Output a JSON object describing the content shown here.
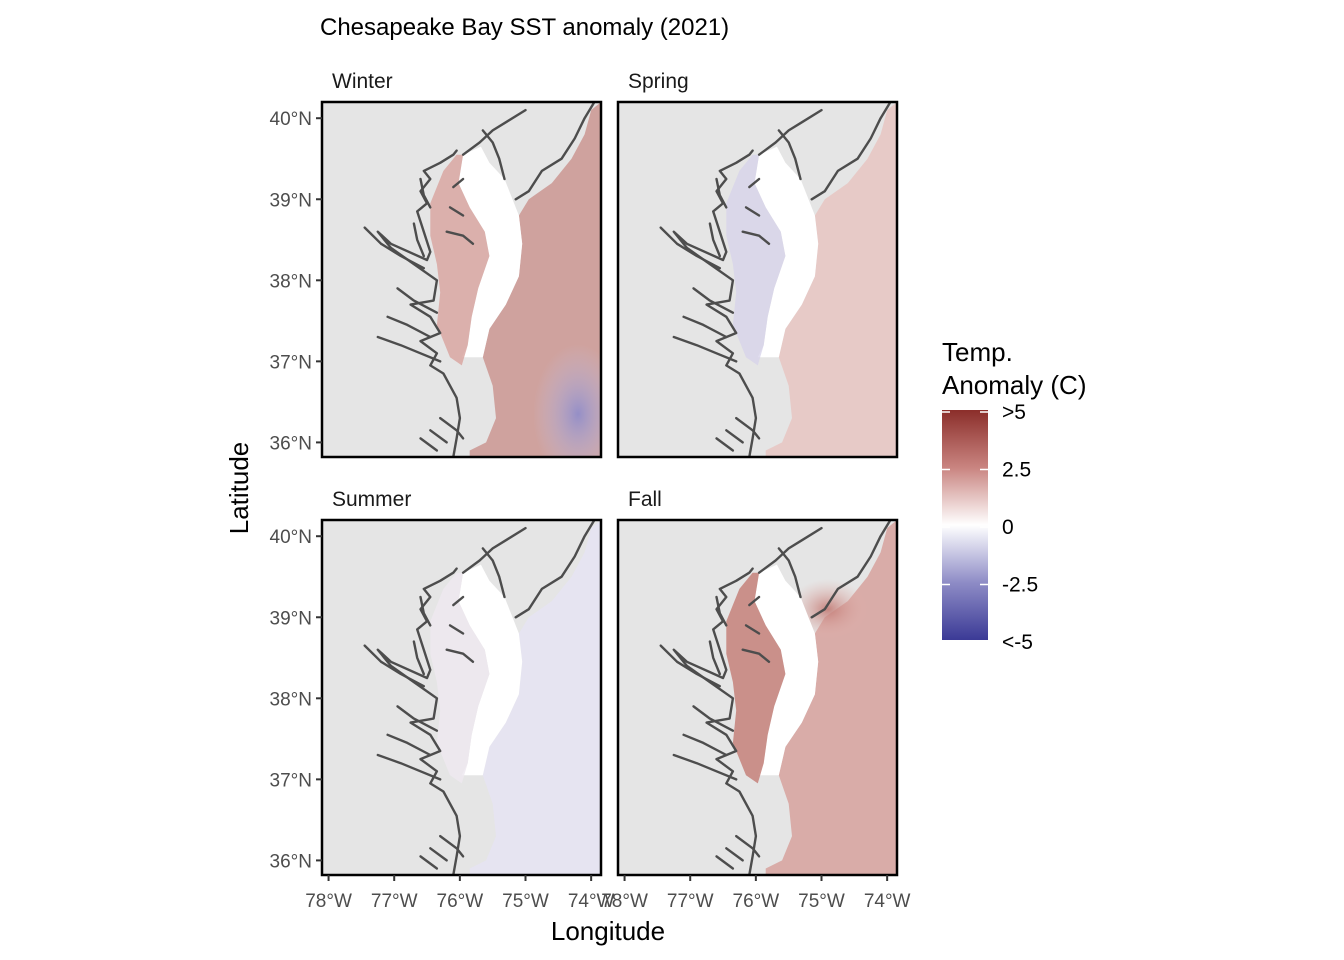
{
  "title": "Chesapeake Bay SST anomaly (2021)",
  "xlabel": "Longitude",
  "ylabel": "Latitude",
  "x_ticks": [
    "78°W",
    "77°W",
    "76°W",
    "75°W",
    "74°W"
  ],
  "y_ticks": [
    "36°N",
    "37°N",
    "38°N",
    "39°N",
    "40°N"
  ],
  "panels": [
    {
      "label": "Winter",
      "fill": "anomaly-warm-offshore-cool-south"
    },
    {
      "label": "Spring",
      "fill": "anomaly-cool-upper-bay"
    },
    {
      "label": "Summer",
      "fill": "anomaly-slightly-cool"
    },
    {
      "label": "Fall",
      "fill": "anomaly-warm"
    }
  ],
  "legend": {
    "title_line1": "Temp.",
    "title_line2": "Anomaly (C)",
    "labels": [
      ">5",
      "2.5",
      "0",
      "-2.5",
      "<-5"
    ],
    "colors": {
      "high": "#8B2E2A",
      "mid": "#FFFFFF",
      "low": "#3B3A96"
    }
  },
  "colors": {
    "panel_bg": "#E5E5E5",
    "coast": "#4D4D4D",
    "land": "#FFFFFF",
    "text": "#4D4D4D"
  }
}
